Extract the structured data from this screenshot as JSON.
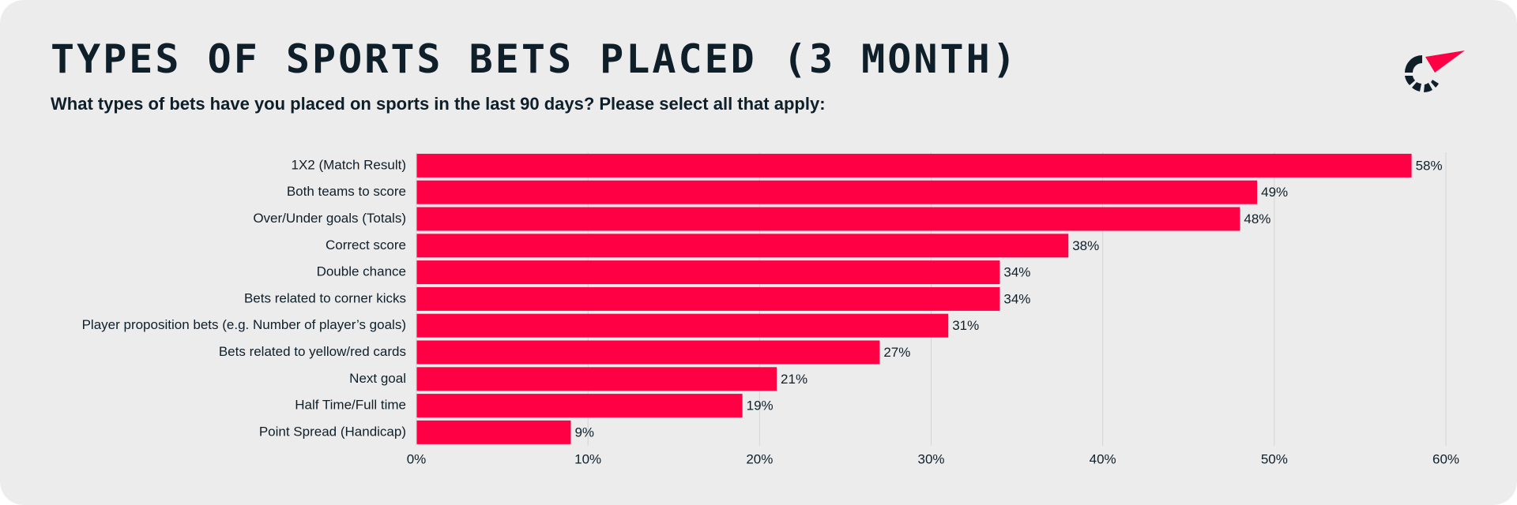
{
  "header": {
    "title": "TYPES OF SPORTS BETS PLACED (3 MONTH)",
    "subtitle": "What types of bets have you placed on sports in the last 90 days? Please select all that apply:"
  },
  "colors": {
    "bar": "#ff0044",
    "background": "#ececec",
    "text": "#0f1f2a",
    "grid": "#d3d3d3",
    "logo_dark": "#0f1f2a",
    "logo_accent": "#ff0044"
  },
  "logo": {
    "icon": "brand-logo-icon"
  },
  "chart_data": {
    "type": "bar",
    "orientation": "horizontal",
    "title": "",
    "xlabel": "",
    "ylabel": "",
    "categories": [
      "1X2 (Match Result)",
      "Both teams to score",
      "Over/Under goals (Totals)",
      "Correct score",
      "Double chance",
      "Bets related to corner kicks",
      "Player proposition bets (e.g. Number of player’s goals)",
      "Bets related to yellow/red cards",
      "Next goal",
      "Half Time/Full time",
      "Point Spread (Handicap)"
    ],
    "values": [
      58,
      49,
      48,
      38,
      34,
      34,
      31,
      27,
      21,
      19,
      9
    ],
    "value_labels": [
      "58%",
      "49%",
      "48%",
      "38%",
      "34%",
      "34%",
      "31%",
      "27%",
      "21%",
      "19%",
      "9%"
    ],
    "xlim": [
      0,
      60
    ],
    "xticks": [
      0,
      10,
      20,
      30,
      40,
      50,
      60
    ],
    "xtick_labels": [
      "0%",
      "10%",
      "20%",
      "30%",
      "40%",
      "50%",
      "60%"
    ],
    "grid": "vertical",
    "legend": "none"
  }
}
